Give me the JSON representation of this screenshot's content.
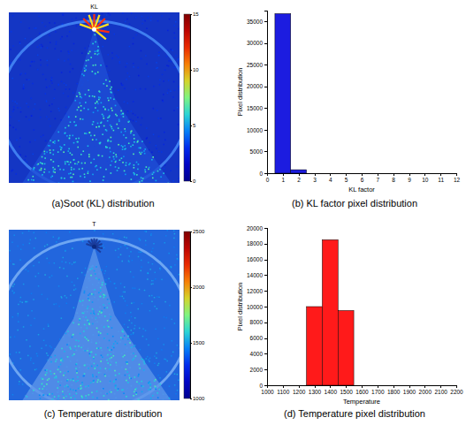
{
  "chart_data": [
    {
      "type": "image",
      "title": "KL",
      "caption": "(a)Soot (KL) distribution",
      "colorbar": {
        "range": [
          0,
          15
        ],
        "ticks": [
          0,
          5,
          10,
          15
        ]
      }
    },
    {
      "type": "histogram",
      "caption": "(b) KL factor pixel distribution",
      "x_label": "KL factor",
      "y_label": "Pixel distribution",
      "bins": [
        0.5,
        1.5,
        2.5
      ],
      "values": [
        36800,
        800
      ],
      "color": "#1c1ce0",
      "xlim": [
        0,
        12
      ],
      "xticks": [
        0,
        1,
        2,
        3,
        4,
        5,
        6,
        7,
        8,
        9,
        10,
        11,
        12
      ],
      "ylim": [
        0,
        37500
      ],
      "yticks": [
        0,
        5000,
        10000,
        15000,
        20000,
        25000,
        30000,
        35000
      ],
      "grid": false
    },
    {
      "type": "image",
      "title": "T",
      "caption": "(c) Temperature distribution",
      "colorbar": {
        "range": [
          1000,
          2500
        ],
        "ticks": [
          1000,
          1500,
          2000,
          2500
        ]
      }
    },
    {
      "type": "histogram",
      "caption": "(d) Temperature pixel distribution",
      "x_label": "Temperature",
      "y_label": "Pixel distribution",
      "bins": [
        1250,
        1350,
        1450,
        1550
      ],
      "values": [
        10000,
        18500,
        9500
      ],
      "color": "#ff1a1a",
      "xlim": [
        1000,
        2200
      ],
      "xticks": [
        1000,
        1100,
        1200,
        1300,
        1400,
        1500,
        1600,
        1700,
        1800,
        1900,
        2000,
        2100,
        2200
      ],
      "ylim": [
        0,
        20000
      ],
      "yticks": [
        0,
        2000,
        4000,
        6000,
        8000,
        10000,
        12000,
        14000,
        16000,
        18000,
        20000
      ],
      "grid": false
    }
  ]
}
